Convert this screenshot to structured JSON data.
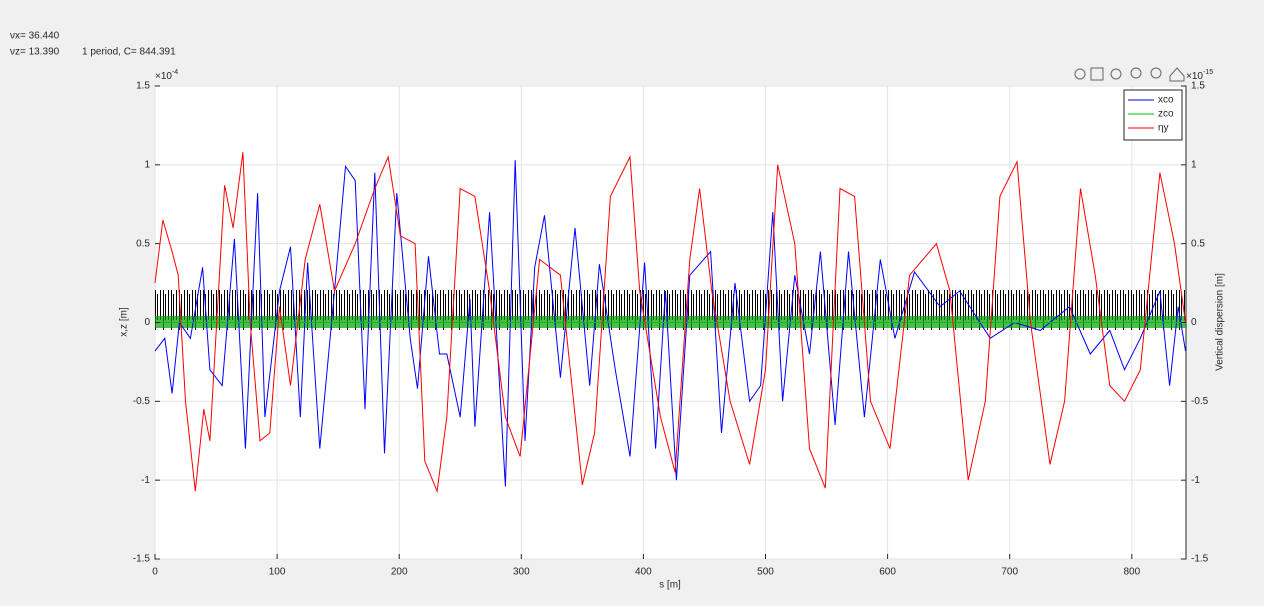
{
  "header": {
    "nu_x": "νx= 36.440",
    "nu_z": "νz= 13.390",
    "period": "1 period, C=   844.391"
  },
  "chart_data": {
    "type": "line",
    "xlabel": "s [m]",
    "ylabel": "x,z [m]",
    "y2label": "Vertical dispersion [m]",
    "y_exponent": {
      "base": "×10",
      "exp": "-4"
    },
    "y2_exponent": {
      "base": "×10",
      "exp": "-15"
    },
    "xlim": [
      0,
      844.391
    ],
    "xticks": [
      0,
      100,
      200,
      300,
      400,
      500,
      600,
      700,
      800
    ],
    "ylim": [
      -1.5,
      1.5
    ],
    "yticks": [
      -1.5,
      -1,
      -0.5,
      0,
      0.5,
      1,
      1.5
    ],
    "y2lim": [
      -1.5,
      1.5
    ],
    "y2ticks": [
      -1.5,
      -1,
      -0.5,
      0,
      0.5,
      1,
      1.5
    ],
    "grid": true,
    "legend": "upper right",
    "series": [
      {
        "name": "xco",
        "color": "#0000ff",
        "x": [
          0,
          8,
          14,
          20,
          29,
          39,
          45,
          55,
          65,
          74,
          84,
          90,
          102,
          111,
          119,
          125,
          135,
          147,
          156,
          164,
          172,
          180,
          188,
          198,
          209,
          215,
          224,
          233,
          239,
          250,
          258,
          262,
          274,
          287,
          295,
          303,
          311,
          319,
          332,
          344,
          356,
          364,
          377,
          389,
          401,
          410,
          418,
          427,
          438,
          455,
          464,
          475,
          487,
          496,
          506,
          514,
          524,
          536,
          545,
          557,
          568,
          581,
          594,
          606,
          622,
          643,
          659,
          684,
          704,
          725,
          749,
          766,
          782,
          794,
          807,
          823,
          831,
          838,
          844
        ],
        "values": [
          -0.18,
          -0.1,
          -0.45,
          0,
          -0.1,
          0.35,
          -0.3,
          -0.4,
          0.53,
          -0.8,
          0.82,
          -0.6,
          0.2,
          0.48,
          -0.6,
          0.38,
          -0.8,
          0.2,
          0.99,
          0.9,
          -0.55,
          0.95,
          -0.83,
          0.82,
          -0.1,
          -0.42,
          0.42,
          -0.2,
          -0.2,
          -0.6,
          0.15,
          -0.66,
          0.7,
          -1.04,
          1.03,
          -0.75,
          0.35,
          0.68,
          -0.35,
          0.6,
          -0.4,
          0.37,
          -0.3,
          -0.85,
          0.38,
          -0.8,
          0.2,
          -1,
          0.3,
          0.45,
          -0.7,
          0.25,
          -0.5,
          -0.4,
          0.7,
          -0.5,
          0.3,
          -0.2,
          0.45,
          -0.65,
          0.45,
          -0.6,
          0.4,
          -0.1,
          0.32,
          0.1,
          0.2,
          -0.1,
          0,
          -0.05,
          0.1,
          -0.2,
          -0.05,
          -0.3,
          -0.1,
          0.2,
          -0.4,
          0.1,
          -0.18
        ]
      },
      {
        "name": "zco",
        "color": "#00c000",
        "x": [
          0,
          844.391
        ],
        "values": [
          0,
          0
        ]
      },
      {
        "name": "ηy",
        "color": "#ff0000",
        "axis": "y2",
        "x": [
          0,
          6.5,
          14,
          19,
          25,
          33,
          40,
          45,
          57,
          64,
          72,
          78,
          86,
          94,
          102,
          111,
          123,
          135,
          147,
          164,
          180,
          191,
          201,
          213,
          221,
          231,
          239,
          250,
          262,
          274,
          287,
          299,
          315,
          332,
          350,
          360,
          373,
          389,
          397,
          414,
          426,
          438,
          446,
          456,
          471,
          487,
          500,
          510,
          524,
          536,
          549,
          561,
          573,
          586,
          602,
          618,
          640,
          651,
          666,
          680,
          692,
          706,
          717,
          733,
          745,
          758,
          770,
          782,
          794,
          807,
          823,
          835,
          844
        ],
        "values": [
          0.25,
          0.65,
          0.45,
          0.3,
          -0.5,
          -1.07,
          -0.55,
          -0.75,
          0.87,
          0.6,
          1.08,
          0,
          -0.75,
          -0.7,
          0.1,
          -0.4,
          0.4,
          0.75,
          0.2,
          0.5,
          0.85,
          1.05,
          0.55,
          0.5,
          -0.88,
          -1.07,
          -0.6,
          0.85,
          0.8,
          0.2,
          -0.6,
          -0.85,
          0.4,
          0.3,
          -1.03,
          -0.7,
          0.8,
          1.05,
          0.2,
          -0.6,
          -0.95,
          0.4,
          0.85,
          0.2,
          -0.5,
          -0.9,
          -0.3,
          1,
          0.5,
          -0.8,
          -1.05,
          0.85,
          0.8,
          -0.5,
          -0.8,
          0.3,
          0.5,
          0.2,
          -1,
          -0.5,
          0.8,
          1.02,
          0,
          -0.9,
          -0.5,
          0.85,
          0.3,
          -0.4,
          -0.5,
          -0.3,
          0.95,
          0.5,
          0
        ]
      }
    ]
  }
}
